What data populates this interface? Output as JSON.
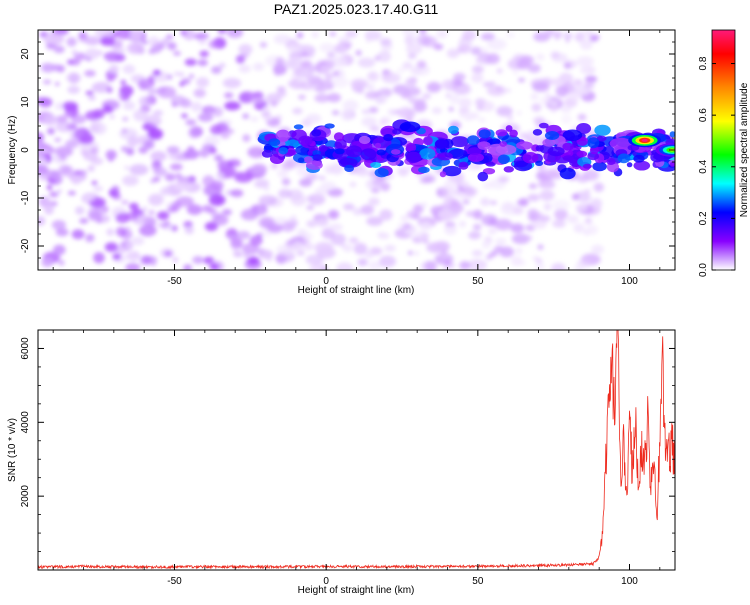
{
  "title": "PAZ1.2025.023.17.40.G11",
  "colors": {
    "snr_line": "#ee2a1e",
    "spectrogram_scale": [
      "#ffffff",
      "#8800ff",
      "#0000ff",
      "#00ffff",
      "#00ff00",
      "#ffff00",
      "#ff8800",
      "#ff0000",
      "#ff1a7a"
    ]
  },
  "chart_data": [
    {
      "type": "heatmap",
      "title": "",
      "xlabel": "Height of straight line (km)",
      "ylabel": "Frequency (Hz)",
      "xlim": [
        -95,
        115
      ],
      "ylim": [
        -25,
        25
      ],
      "xticks": [
        -50,
        0,
        50,
        100
      ],
      "yticks": [
        -20,
        -10,
        0,
        10,
        20
      ],
      "grid": false,
      "colorbar": {
        "label": "Normalized spectral amplitude",
        "range": [
          0.0,
          0.93
        ],
        "ticks": [
          0.0,
          0.2,
          0.4,
          0.6,
          0.8
        ]
      },
      "features": [
        {
          "description": "diffuse low-amplitude noise",
          "x_range": [
            -95,
            90
          ],
          "y_range": [
            -25,
            25
          ],
          "amplitude": 0.05
        },
        {
          "description": "signal band along 0 Hz",
          "x_range": [
            -20,
            115
          ],
          "y_center": 0,
          "amplitude": 0.18
        },
        {
          "description": "strong peak",
          "x": 105,
          "y": 2,
          "amplitude": 0.93
        },
        {
          "description": "peak",
          "x": 114,
          "y": 0,
          "amplitude": 0.55
        }
      ]
    },
    {
      "type": "line",
      "title": "",
      "xlabel": "Height of straight line (km)",
      "ylabel": "SNR (10 * v/v)",
      "xlim": [
        -95,
        115
      ],
      "ylim": [
        0,
        6500
      ],
      "xticks": [
        -50,
        0,
        50,
        100
      ],
      "yticks": [
        2000,
        4000,
        6000
      ],
      "grid": false,
      "series": [
        {
          "x": [
            -95,
            -80,
            -60,
            -40,
            -20,
            0,
            20,
            40,
            60,
            80,
            88,
            90,
            91,
            92,
            93,
            94,
            95,
            96,
            97,
            98,
            99,
            100,
            101,
            102,
            103,
            104,
            105,
            106,
            107,
            108,
            109,
            110,
            111,
            112,
            113,
            115
          ],
          "y": [
            80,
            95,
            80,
            90,
            85,
            95,
            90,
            95,
            110,
            135,
            170,
            350,
            900,
            2500,
            4400,
            5800,
            4200,
            6500,
            2700,
            3300,
            1800,
            3800,
            2700,
            4200,
            2400,
            3400,
            2900,
            4000,
            2200,
            3100,
            1400,
            3500,
            5500,
            2900,
            3400,
            3200
          ]
        }
      ]
    }
  ]
}
